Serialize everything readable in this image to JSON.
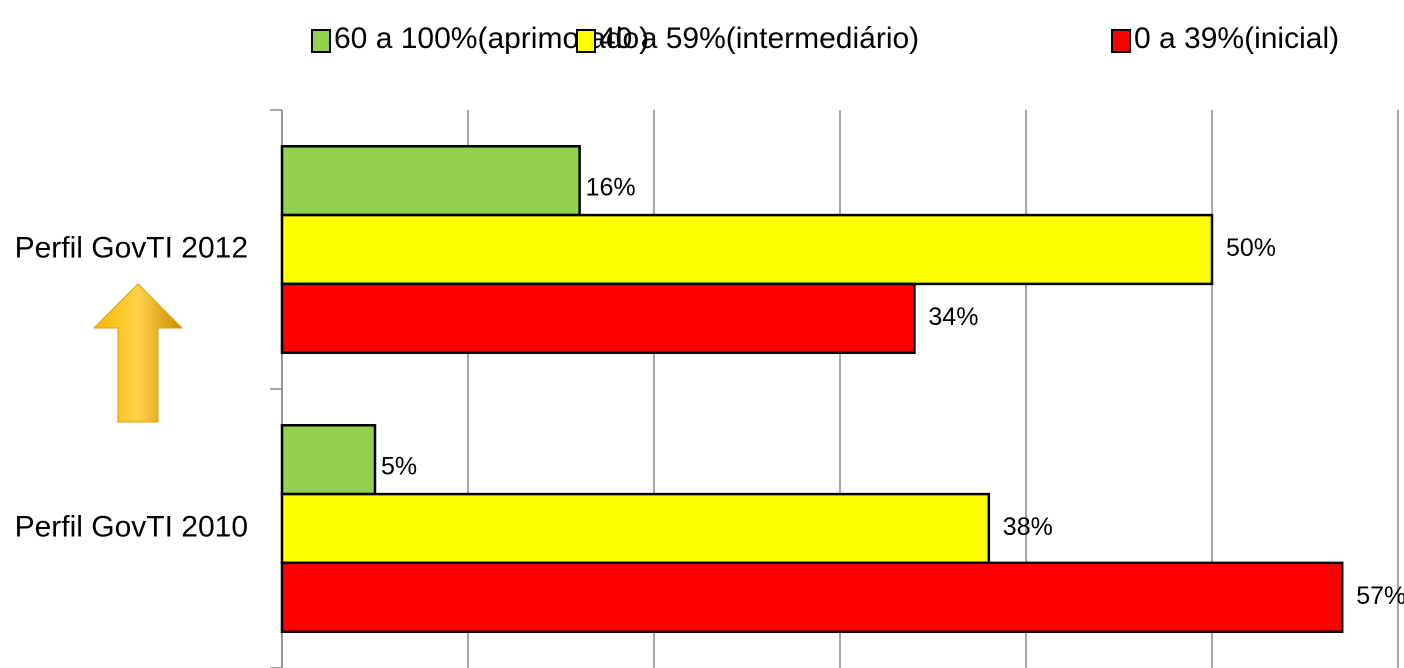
{
  "chart_data": {
    "type": "hbar",
    "categories": [
      "Perfil GovTI 2012",
      "Perfil GovTI 2010"
    ],
    "series": [
      {
        "name": "60 a 100%(aprimorado)",
        "color": "#92d050",
        "values": [
          16,
          5
        ],
        "value_labels": [
          "16%",
          "5%"
        ]
      },
      {
        "name": "40 a 59%(intermediário)",
        "color": "#ffff00",
        "values": [
          50,
          38
        ],
        "value_labels": [
          "50%",
          "38%"
        ]
      },
      {
        "name": "0 a 39%(inicial)",
        "color": "#ff0000",
        "values": [
          34,
          57
        ],
        "value_labels": [
          "34%",
          "57%"
        ]
      }
    ],
    "xlim": [
      0,
      60
    ],
    "xticks": [
      0,
      10,
      20,
      30,
      40,
      50,
      60
    ],
    "grid": true,
    "legend": "top"
  }
}
